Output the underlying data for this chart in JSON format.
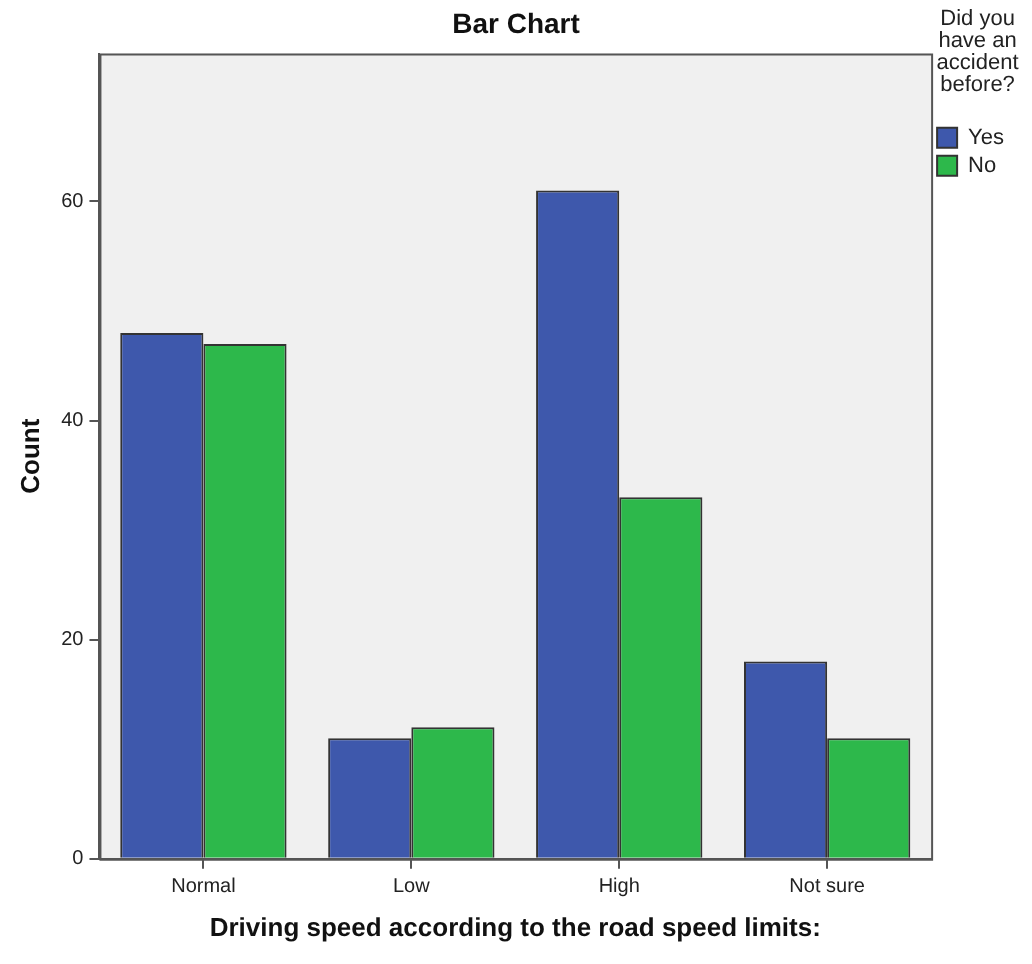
{
  "chart_data": {
    "type": "bar",
    "title": "Bar Chart",
    "xlabel": "Driving speed according to the road speed limits:",
    "ylabel": "Count",
    "legend_title": "Did you have an accident before?",
    "categories": [
      "Normal",
      "Low",
      "High",
      "Not sure"
    ],
    "series": [
      {
        "name": "Yes",
        "color": "#3e58ac",
        "values": [
          48,
          11,
          61,
          18
        ]
      },
      {
        "name": "No",
        "color": "#2db84b",
        "values": [
          47,
          12,
          33,
          11
        ]
      }
    ],
    "ylim": [
      0,
      73.5
    ],
    "yticks": [
      0,
      20,
      40,
      60
    ],
    "grid": false,
    "legend": "right"
  }
}
